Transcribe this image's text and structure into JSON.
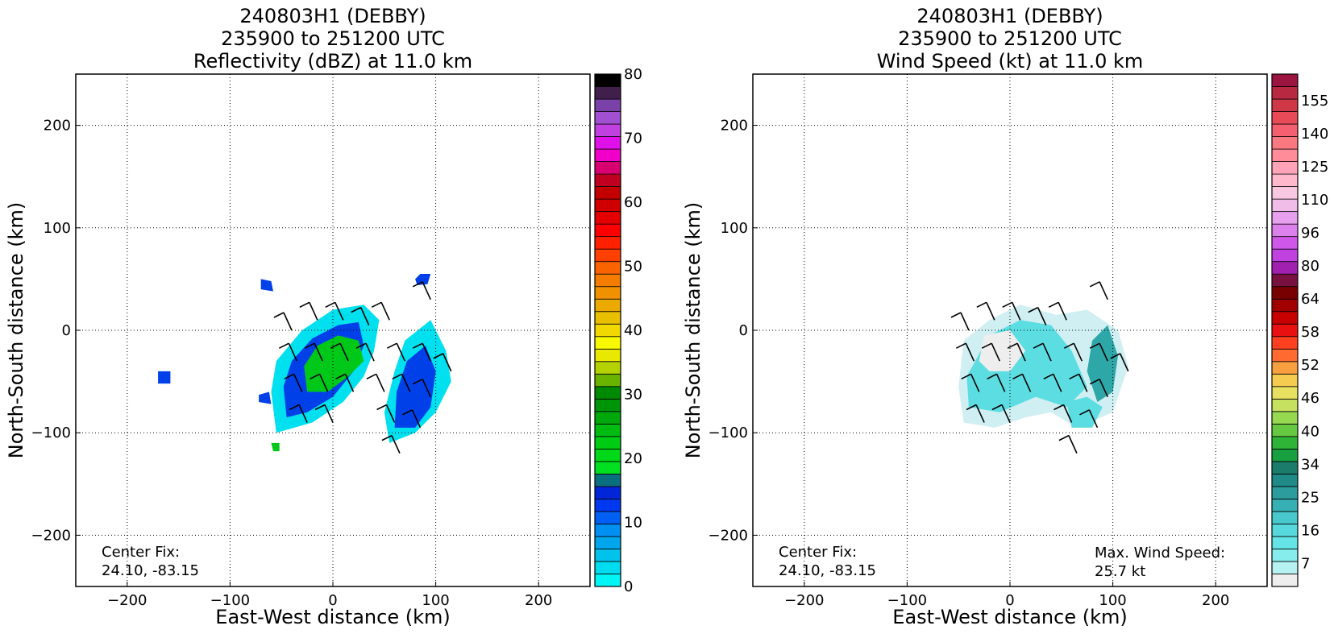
{
  "chart_data": [
    {
      "type": "heatmap",
      "title": [
        "240803H1 (DEBBY)",
        "235900 to 251200 UTC",
        "Reflectivity (dBZ) at 11.0 km"
      ],
      "xlabel": "East-West distance (km)",
      "ylabel": "North-South distance (km)",
      "xlim": [
        -250,
        250
      ],
      "ylim": [
        -250,
        250
      ],
      "xticks": [
        -200,
        -100,
        0,
        100,
        200
      ],
      "yticks": [
        -200,
        -100,
        0,
        100,
        200
      ],
      "xticklabels": [
        "−200",
        "−100",
        "0",
        "100",
        "200"
      ],
      "yticklabels": [
        "−200",
        "−100",
        "0",
        "100",
        "200"
      ],
      "grid": true,
      "colorbar": {
        "min": 0,
        "max": 80,
        "ticks": [
          0,
          10,
          20,
          30,
          40,
          50,
          60,
          70,
          80
        ],
        "colors": [
          "#00f5f5",
          "#00dcef",
          "#00c2ea",
          "#00a6ec",
          "#0090f2",
          "#0060f4",
          "#0038f0",
          "#0026d8",
          "#0a7080",
          "#00e020",
          "#00d818",
          "#00cc14",
          "#00bc10",
          "#00a80c",
          "#009408",
          "#008a04",
          "#6ab400",
          "#b4d200",
          "#e8e800",
          "#f8f800",
          "#f0d800",
          "#e8c000",
          "#ecaa00",
          "#f09200",
          "#f47c00",
          "#fa6400",
          "#ff4000",
          "#ff2000",
          "#ff0000",
          "#e40000",
          "#d00000",
          "#c20000",
          "#c00020",
          "#d80070",
          "#f000c8",
          "#e010e8",
          "#c040e0",
          "#a050d0",
          "#7a42a8",
          "#40204a",
          "#000000"
        ]
      },
      "center_fix_label": "Center Fix:",
      "center_fix_value": "24.10, -83.15"
    },
    {
      "type": "heatmap",
      "title": [
        "240803H1 (DEBBY)",
        "235900 to 251200 UTC",
        "Wind Speed (kt) at 11.0 km"
      ],
      "xlabel": "East-West distance (km)",
      "ylabel": "North-South distance (km)",
      "xlim": [
        -250,
        250
      ],
      "ylim": [
        -250,
        250
      ],
      "xticks": [
        -200,
        -100,
        0,
        100,
        200
      ],
      "yticks": [
        -200,
        -100,
        0,
        100,
        200
      ],
      "xticklabels": [
        "−200",
        "−100",
        "0",
        "100",
        "200"
      ],
      "yticklabels": [
        "−200",
        "−100",
        "0",
        "100",
        "200"
      ],
      "grid": true,
      "colorbar": {
        "ticks": [
          "7",
          "16",
          "25",
          "34",
          "40",
          "46",
          "52",
          "58",
          "64",
          "80",
          "96",
          "110",
          "125",
          "140",
          "155"
        ],
        "colors": [
          "#eeeeee",
          "#b6f2f2",
          "#86ecec",
          "#64e4e6",
          "#56d8dc",
          "#48c8cc",
          "#36b0b4",
          "#2c9c9c",
          "#208a88",
          "#1c7c6c",
          "#18a040",
          "#30b438",
          "#66c840",
          "#96d850",
          "#c6e060",
          "#e8e060",
          "#f6cc50",
          "#f8a040",
          "#ff6a30",
          "#ff4020",
          "#e81010",
          "#c80000",
          "#a00000",
          "#780000",
          "#781040",
          "#a020b0",
          "#c040e0",
          "#d058e8",
          "#dc80ec",
          "#e6a0ee",
          "#f0bce8",
          "#f8c8e0",
          "#ffb8cc",
          "#ffa4b8",
          "#ff8c98",
          "#fa7880",
          "#f46070",
          "#e84a58",
          "#d03848",
          "#b82840",
          "#9c1440"
        ]
      },
      "center_fix_label": "Center Fix:",
      "center_fix_value": "24.10, -83.15",
      "max_wind_label": "Max. Wind Speed:",
      "max_wind_value": "25.7 kt"
    }
  ]
}
